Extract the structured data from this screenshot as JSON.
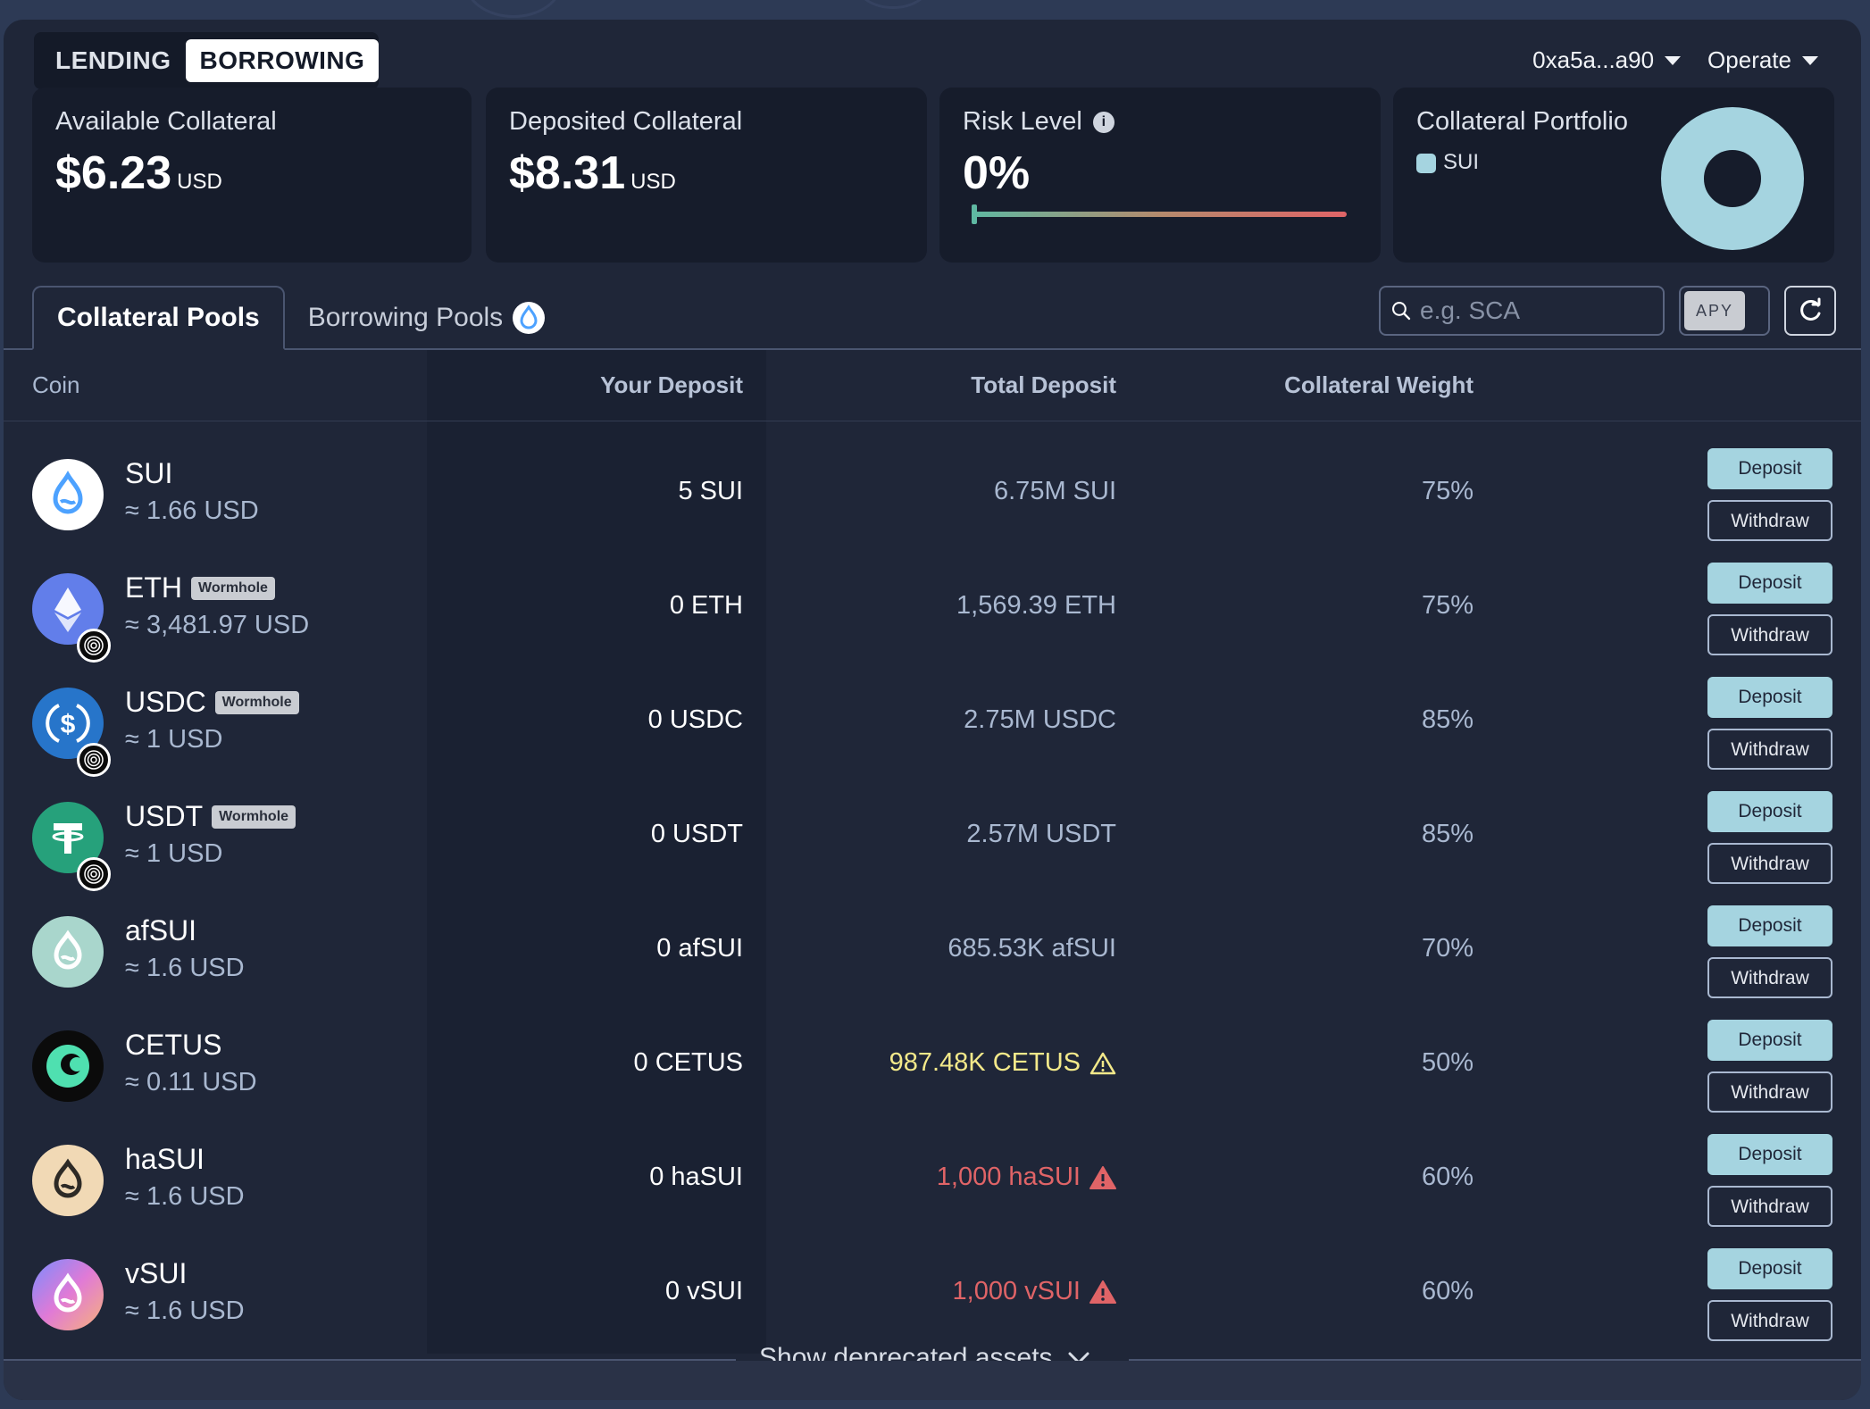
{
  "mode_tabs": {
    "lending": "LENDING",
    "borrowing": "BORROWING"
  },
  "header": {
    "wallet": "0xa5a...a90",
    "operate": "Operate"
  },
  "summary": {
    "available_label": "Available Collateral",
    "available_value": "$6.23",
    "available_unit": "USD",
    "deposited_label": "Deposited Collateral",
    "deposited_value": "$8.31",
    "deposited_unit": "USD",
    "risk_label": "Risk Level",
    "risk_value": "0%",
    "risk_level_fraction": 0,
    "portfolio_label": "Collateral Portfolio",
    "portfolio_legend": "SUI"
  },
  "pool_tabs": {
    "collateral": "Collateral Pools",
    "borrowing": "Borrowing Pools"
  },
  "search": {
    "placeholder": "e.g. SCA"
  },
  "apy_label": "APY",
  "table": {
    "headers": {
      "coin": "Coin",
      "your_deposit": "Your Deposit",
      "total_deposit": "Total Deposit",
      "collateral_weight": "Collateral Weight"
    },
    "deposit_label": "Deposit",
    "withdraw_label": "Withdraw",
    "rows": [
      {
        "name": "SUI",
        "badge": "",
        "price": "≈ 1.66 USD",
        "your_deposit": "5 SUI",
        "total_deposit": "6.75M SUI",
        "status": "normal",
        "weight": "75%"
      },
      {
        "name": "ETH",
        "badge": "Wormhole",
        "price": "≈ 3,481.97 USD",
        "your_deposit": "0 ETH",
        "total_deposit": "1,569.39 ETH",
        "status": "normal",
        "weight": "75%"
      },
      {
        "name": "USDC",
        "badge": "Wormhole",
        "price": "≈ 1 USD",
        "your_deposit": "0 USDC",
        "total_deposit": "2.75M USDC",
        "status": "normal",
        "weight": "85%"
      },
      {
        "name": "USDT",
        "badge": "Wormhole",
        "price": "≈ 1 USD",
        "your_deposit": "0 USDT",
        "total_deposit": "2.57M USDT",
        "status": "normal",
        "weight": "85%"
      },
      {
        "name": "afSUI",
        "badge": "",
        "price": "≈ 1.6 USD",
        "your_deposit": "0 afSUI",
        "total_deposit": "685.53K afSUI",
        "status": "normal",
        "weight": "70%"
      },
      {
        "name": "CETUS",
        "badge": "",
        "price": "≈ 0.11 USD",
        "your_deposit": "0 CETUS",
        "total_deposit": "987.48K CETUS",
        "status": "warn",
        "weight": "50%"
      },
      {
        "name": "haSUI",
        "badge": "",
        "price": "≈ 1.6 USD",
        "your_deposit": "0 haSUI",
        "total_deposit": "1,000 haSUI",
        "status": "danger",
        "weight": "60%"
      },
      {
        "name": "vSUI",
        "badge": "",
        "price": "≈ 1.6 USD",
        "your_deposit": "0 vSUI",
        "total_deposit": "1,000 vSUI",
        "status": "danger",
        "weight": "60%"
      }
    ]
  },
  "show_deprecated": "Show deprecated assets",
  "colors": {
    "accent": "#a5d4e0",
    "warn": "#f3e98a",
    "danger": "#e06467",
    "panel": "#1f2638"
  }
}
